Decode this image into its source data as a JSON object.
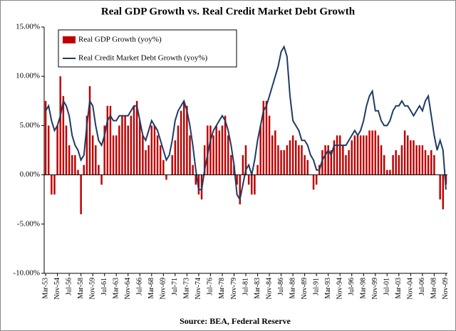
{
  "chart_data": {
    "type": "bar-line",
    "title": "Real GDP Growth vs. Real Credit Market Debt Growth",
    "source": "Source:  BEA, Federal Reserve",
    "categories": [
      "Mar-53",
      null,
      null,
      null,
      "Nov-54",
      null,
      null,
      null,
      "Jul-56",
      null,
      null,
      null,
      "Mar-58",
      null,
      null,
      null,
      "Nov-59",
      null,
      null,
      null,
      "Jul-61",
      null,
      null,
      null,
      "Mar-63",
      null,
      null,
      null,
      "Nov-64",
      null,
      null,
      null,
      "Jul-66",
      null,
      null,
      null,
      "Mar-68",
      null,
      null,
      null,
      "Nov-69",
      null,
      null,
      null,
      "Jul-71",
      null,
      null,
      null,
      "Mar-73",
      null,
      null,
      null,
      "Nov-74",
      null,
      null,
      null,
      "Jul-76",
      null,
      null,
      null,
      "Mar-78",
      null,
      null,
      null,
      "Nov-79",
      null,
      null,
      null,
      "Jul-81",
      null,
      null,
      null,
      "Mar-83",
      null,
      null,
      null,
      "Nov-84",
      null,
      null,
      null,
      "Jul-86",
      null,
      null,
      null,
      "Mar-88",
      null,
      null,
      null,
      "Nov-89",
      null,
      null,
      null,
      "Jul-91",
      null,
      null,
      null,
      "Mar-93",
      null,
      null,
      null,
      "Nov-94",
      null,
      null,
      null,
      "Jul-96",
      null,
      null,
      null,
      "Mar-98",
      null,
      null,
      null,
      "Nov-99",
      null,
      null,
      null,
      "Jul-01",
      null,
      null,
      null,
      "Mar-03",
      null,
      null,
      null,
      "Nov-04",
      null,
      null,
      null,
      "Jul-06",
      null,
      null,
      null,
      "Mar-08",
      null,
      null,
      null,
      "Nov-09"
    ],
    "series": [
      {
        "name": "Real GDP Growth (yoy%)",
        "kind": "bar",
        "color": "#c00000",
        "values": [
          7.5,
          5,
          -2,
          -2,
          5,
          10,
          8,
          5,
          3,
          2,
          2,
          0.5,
          -4,
          1,
          6,
          9,
          4,
          3,
          1,
          -1,
          5,
          7,
          7,
          4,
          4,
          5,
          6,
          6,
          5,
          6,
          7,
          7.5,
          5.5,
          4,
          2.5,
          3,
          5,
          5,
          4,
          3,
          1.5,
          -0.5,
          0,
          2,
          3.5,
          5,
          6.5,
          7.5,
          7,
          4,
          1,
          -1,
          -2,
          -2.5,
          3,
          5,
          5,
          4,
          5,
          4.5,
          5,
          6,
          4,
          2,
          1,
          -1,
          -3,
          2,
          3,
          -1,
          -2,
          -2,
          1,
          5,
          7.5,
          7.5,
          6,
          4,
          4.5,
          3,
          2.5,
          2.5,
          3,
          3.5,
          4,
          3.5,
          3,
          3,
          2,
          1.5,
          0,
          -1.5,
          -1,
          1,
          2.5,
          3,
          3,
          2.5,
          3.5,
          4,
          4,
          3,
          2,
          2.5,
          3.5,
          4,
          4,
          4,
          4,
          4,
          4.5,
          4.5,
          4.5,
          4,
          3,
          2,
          0.5,
          0.5,
          2,
          2.5,
          2,
          3,
          4.5,
          4,
          3.5,
          3.5,
          3,
          3,
          3,
          2.5,
          2,
          2.5,
          2,
          0,
          -2.5,
          -3.5,
          -1
        ]
      },
      {
        "name": "Real Credit Market Debt Growth (yoy%)",
        "kind": "line",
        "color": "#1f3b64",
        "values": [
          6.5,
          7,
          5.5,
          4.5,
          5,
          6,
          7.5,
          7,
          6,
          4,
          3,
          2.5,
          1.5,
          2,
          5,
          7.5,
          7,
          5,
          3.5,
          3,
          4,
          5.5,
          6,
          5.5,
          5.5,
          6,
          6,
          6,
          6,
          6.5,
          7,
          7,
          5.5,
          4,
          3.5,
          4.5,
          5.5,
          5,
          4.5,
          3.5,
          2.5,
          1.5,
          2,
          3.5,
          5.5,
          6.5,
          7,
          7.5,
          6.5,
          5,
          3,
          0.5,
          -1.5,
          -1.5,
          0.5,
          2,
          3.5,
          4.5,
          5,
          5.5,
          6,
          5.5,
          4.5,
          3,
          1,
          -2,
          -2.5,
          -1,
          0.5,
          1,
          0,
          1.5,
          3.5,
          5,
          6.5,
          7,
          8,
          9,
          10,
          11,
          12.5,
          13,
          12,
          8,
          5.5,
          5,
          4.5,
          3.5,
          3.5,
          3,
          2,
          1.5,
          0.5,
          0.5,
          1.5,
          2,
          2.5,
          2,
          3,
          3,
          3,
          3,
          3,
          3.5,
          4,
          4.5,
          4,
          4.5,
          5.5,
          7,
          8,
          8.5,
          6.5,
          6.5,
          5.5,
          5,
          5,
          5.5,
          6.5,
          7,
          7,
          7.5,
          7,
          7,
          6.5,
          6,
          6.5,
          7,
          6.5,
          7.5,
          8,
          6,
          4,
          2.5,
          3.5,
          2.5,
          -1.5
        ]
      }
    ],
    "ylim": [
      -10,
      15
    ],
    "yticks": [
      {
        "value": -10,
        "label": "-10.00%"
      },
      {
        "value": -5,
        "label": "-5.00%"
      },
      {
        "value": 0,
        "label": "0.00%"
      },
      {
        "value": 5,
        "label": "5.00%"
      },
      {
        "value": 10,
        "label": "10.00%"
      },
      {
        "value": 15,
        "label": "15.00%"
      }
    ],
    "legend": "upper left"
  }
}
